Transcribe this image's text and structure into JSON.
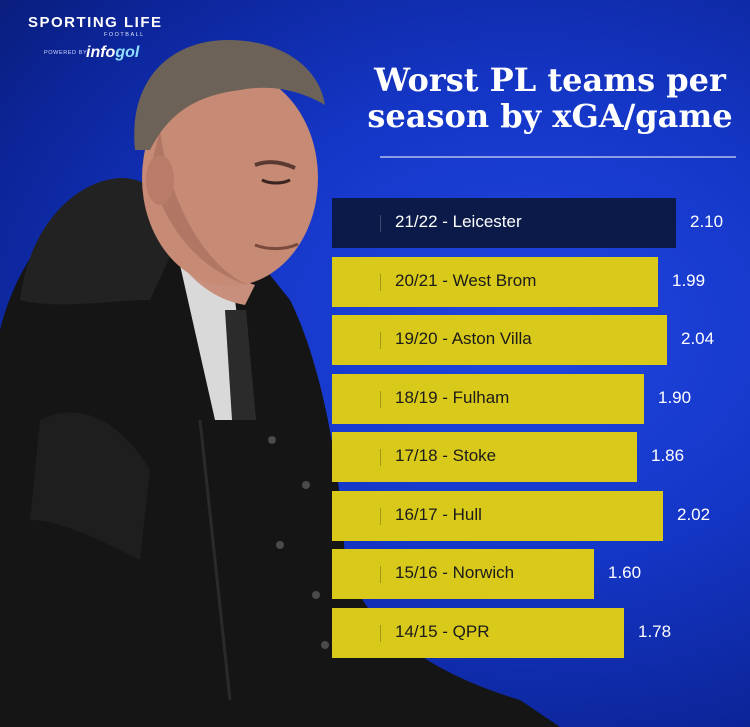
{
  "brand": {
    "name": "SPORTING LIFE",
    "section": "FOOTBALL",
    "powered_by": "POWERED BY",
    "partner_main": "info",
    "partner_tail": "gol"
  },
  "colors": {
    "background": "#1537c8",
    "bar": "#d8c91a",
    "highlight_bar": "#0b1a48",
    "value_text": "#ffffff"
  },
  "chart_data": {
    "type": "bar",
    "orientation": "horizontal",
    "title": "Worst PL teams per season by xGA/game",
    "xlabel": "",
    "ylabel": "",
    "xlim": [
      0,
      2.2
    ],
    "grid": false,
    "highlight": "21/22 - Leicester",
    "categories": [
      "21/22 - Leicester",
      "20/21 - West Brom",
      "19/20 - Aston Villa",
      "18/19 - Fulham",
      "17/18 - Stoke",
      "16/17 - Hull",
      "15/16 - Norwich",
      "14/15 - QPR"
    ],
    "values": [
      2.1,
      1.99,
      2.04,
      1.9,
      1.86,
      2.02,
      1.6,
      1.78
    ],
    "value_labels": [
      "2.10",
      "1.99",
      "2.04",
      "1.90",
      "1.86",
      "2.02",
      "1.60",
      "1.78"
    ]
  }
}
